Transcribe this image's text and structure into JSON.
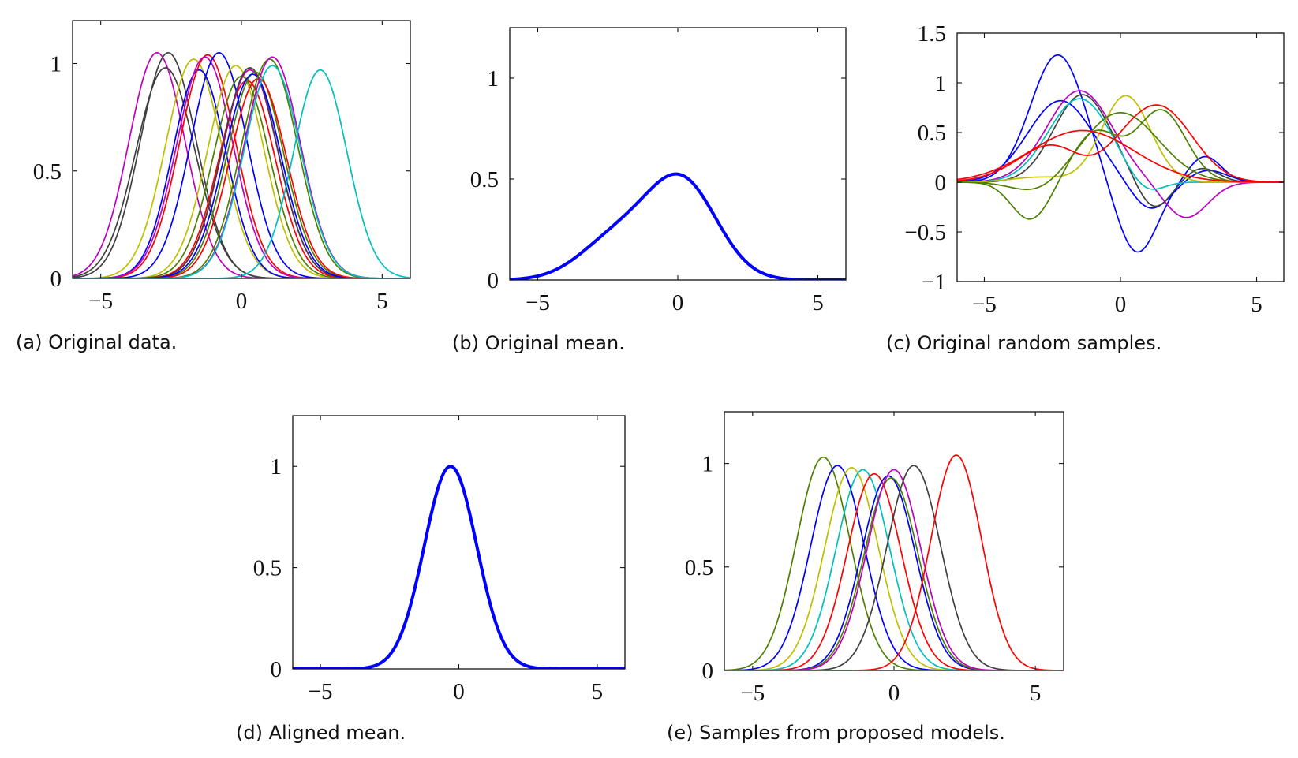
{
  "chart_data": [
    {
      "id": "a",
      "type": "line",
      "caption": "(a) Original data.",
      "xlim": [
        -6,
        6
      ],
      "ylim": [
        0,
        1.2
      ],
      "xticks": [
        -5,
        0,
        5
      ],
      "yticks": [
        0,
        0.5,
        1
      ],
      "xticklabels": [
        "−5",
        "0",
        "5"
      ],
      "yticklabels": [
        "0",
        "0.5",
        "1"
      ],
      "grid": false,
      "legend": "none",
      "series": [
        {
          "kind": "gaussian",
          "color": "#bf00bf",
          "center": -3.0,
          "amp": 1.05,
          "width": 1.0
        },
        {
          "kind": "gaussian",
          "color": "#404040",
          "center": -2.6,
          "amp": 1.05,
          "width": 1.0
        },
        {
          "kind": "gaussian",
          "color": "#404040",
          "center": -2.7,
          "amp": 0.98,
          "width": 1.05
        },
        {
          "kind": "gaussian",
          "color": "#bfbf00",
          "center": -1.7,
          "amp": 1.02,
          "width": 1.0
        },
        {
          "kind": "gaussian",
          "color": "#0000ff",
          "center": -1.5,
          "amp": 0.97,
          "width": 0.95
        },
        {
          "kind": "gaussian",
          "color": "#ff0000",
          "center": -1.2,
          "amp": 1.04,
          "width": 1.0
        },
        {
          "kind": "gaussian",
          "color": "#bf00bf",
          "center": -1.3,
          "amp": 1.03,
          "width": 1.0
        },
        {
          "kind": "gaussian",
          "color": "#0000ff",
          "center": -0.8,
          "amp": 1.05,
          "width": 1.0
        },
        {
          "kind": "gaussian",
          "color": "#bfbf00",
          "center": -0.2,
          "amp": 0.99,
          "width": 1.0
        },
        {
          "kind": "gaussian",
          "color": "#4d8000",
          "center": 0.0,
          "amp": 0.94,
          "width": 1.0
        },
        {
          "kind": "gaussian",
          "color": "#ff0000",
          "center": 0.2,
          "amp": 0.92,
          "width": 1.0
        },
        {
          "kind": "gaussian",
          "color": "#bf00bf",
          "center": 0.3,
          "amp": 0.97,
          "width": 1.0
        },
        {
          "kind": "gaussian",
          "color": "#404040",
          "center": 0.3,
          "amp": 0.98,
          "width": 1.0
        },
        {
          "kind": "gaussian",
          "color": "#4d8000",
          "center": 0.5,
          "amp": 0.96,
          "width": 1.0
        },
        {
          "kind": "gaussian",
          "color": "#0000ff",
          "center": 0.4,
          "amp": 0.95,
          "width": 1.0
        },
        {
          "kind": "gaussian",
          "color": "#ff0000",
          "center": 0.6,
          "amp": 0.93,
          "width": 1.0
        },
        {
          "kind": "gaussian",
          "color": "#4d8000",
          "center": 1.0,
          "amp": 1.02,
          "width": 1.0
        },
        {
          "kind": "gaussian",
          "color": "#bf00bf",
          "center": 1.1,
          "amp": 1.03,
          "width": 1.0
        },
        {
          "kind": "gaussian",
          "color": "#00bfbf",
          "center": 1.1,
          "amp": 0.99,
          "width": 1.0
        },
        {
          "kind": "gaussian",
          "color": "#00bfbf",
          "center": 2.8,
          "amp": 0.97,
          "width": 0.95
        }
      ]
    },
    {
      "id": "b",
      "type": "line",
      "caption": "(b) Original mean.",
      "xlim": [
        -6,
        6
      ],
      "ylim": [
        0,
        1.25
      ],
      "xticks": [
        -5,
        0,
        5
      ],
      "yticks": [
        0,
        0.5,
        1
      ],
      "xticklabels": [
        "−5",
        "0",
        "5"
      ],
      "yticklabels": [
        "0",
        "0.5",
        "1"
      ],
      "grid": false,
      "legend": "none",
      "series": [
        {
          "kind": "sum",
          "color": "#0000ff",
          "thick": true,
          "components": [
            {
              "center": 0.15,
              "amp": 0.48,
              "width": 1.25
            },
            {
              "center": -2.2,
              "amp": 0.2,
              "width": 1.3
            }
          ]
        }
      ]
    },
    {
      "id": "c",
      "type": "line",
      "caption": "(c) Original random samples.",
      "xlim": [
        -6,
        6
      ],
      "ylim": [
        -1,
        1.5
      ],
      "xticks": [
        -5,
        0,
        5
      ],
      "yticks": [
        -1,
        -0.5,
        0,
        0.5,
        1,
        1.5
      ],
      "xticklabels": [
        "−5",
        "0",
        "5"
      ],
      "yticklabels": [
        "−1",
        "−0.5",
        "0",
        "0.5",
        "1",
        "1.5"
      ],
      "grid": false,
      "legend": "none",
      "series": [
        {
          "kind": "sum",
          "color": "#0000ff",
          "components": [
            {
              "center": -2.3,
              "amp": 1.28,
              "width": 1.0
            },
            {
              "center": 0.6,
              "amp": -0.72,
              "width": 0.75
            },
            {
              "center": 3.1,
              "amp": 0.26,
              "width": 0.6
            }
          ]
        },
        {
          "kind": "sum",
          "color": "#0000ff",
          "components": [
            {
              "center": -2.2,
              "amp": 0.82,
              "width": 1.2
            },
            {
              "center": 1.1,
              "amp": -0.28,
              "width": 0.7
            },
            {
              "center": 3.2,
              "amp": 0.12,
              "width": 0.7
            }
          ]
        },
        {
          "kind": "sum",
          "color": "#bf00bf",
          "components": [
            {
              "center": -1.5,
              "amp": 0.92,
              "width": 1.2
            },
            {
              "center": 2.4,
              "amp": -0.36,
              "width": 0.8
            }
          ]
        },
        {
          "kind": "sum",
          "color": "#404040",
          "components": [
            {
              "center": -1.4,
              "amp": 0.88,
              "width": 1.05
            },
            {
              "center": 1.2,
              "amp": -0.28,
              "width": 0.6
            },
            {
              "center": 3.0,
              "amp": 0.14,
              "width": 0.6
            }
          ]
        },
        {
          "kind": "sum",
          "color": "#00bfbf",
          "components": [
            {
              "center": -1.5,
              "amp": 0.84,
              "width": 1.15
            },
            {
              "center": 0.9,
              "amp": -0.14,
              "width": 0.6
            }
          ]
        },
        {
          "kind": "sum",
          "color": "#bfbf00",
          "components": [
            {
              "center": 0.2,
              "amp": 0.87,
              "width": 0.9
            },
            {
              "center": -3.0,
              "amp": 0.05,
              "width": 1.0
            }
          ]
        },
        {
          "kind": "sum",
          "color": "#4d8000",
          "components": [
            {
              "center": -3.3,
              "amp": -0.38,
              "width": 0.7
            },
            {
              "center": -0.9,
              "amp": 0.5,
              "width": 0.85
            },
            {
              "center": 1.5,
              "amp": 0.72,
              "width": 0.9
            }
          ]
        },
        {
          "kind": "sum",
          "color": "#4d8000",
          "components": [
            {
              "center": -3.0,
              "amp": -0.12,
              "width": 0.9
            },
            {
              "center": 0.0,
              "amp": 0.7,
              "width": 1.4
            }
          ]
        },
        {
          "kind": "sum",
          "color": "#ff0000",
          "components": [
            {
              "center": -1.7,
              "amp": 0.54,
              "width": 1.6
            },
            {
              "center": 1.5,
              "amp": 0.7,
              "width": 1.2
            },
            {
              "center": -1.2,
              "amp": -0.3,
              "width": 0.9
            }
          ]
        },
        {
          "kind": "sum",
          "color": "#ff0000",
          "components": [
            {
              "center": -1.4,
              "amp": 0.52,
              "width": 1.9
            }
          ]
        }
      ]
    },
    {
      "id": "d",
      "type": "line",
      "caption": "(d) Aligned mean.",
      "xlim": [
        -6,
        6
      ],
      "ylim": [
        0,
        1.25
      ],
      "xticks": [
        -5,
        0,
        5
      ],
      "yticks": [
        0,
        0.5,
        1
      ],
      "xticklabels": [
        "−5",
        "0",
        "5"
      ],
      "yticklabels": [
        "0",
        "0.5",
        "1"
      ],
      "grid": false,
      "legend": "none",
      "series": [
        {
          "kind": "gaussian",
          "color": "#0000ff",
          "thick": true,
          "center": -0.3,
          "amp": 1.0,
          "width": 0.95
        }
      ]
    },
    {
      "id": "e",
      "type": "line",
      "caption": "(e) Samples from proposed models.",
      "xlim": [
        -6,
        6
      ],
      "ylim": [
        0,
        1.25
      ],
      "xticks": [
        -5,
        0,
        5
      ],
      "yticks": [
        0,
        0.5,
        1
      ],
      "xticklabels": [
        "−5",
        "0",
        "5"
      ],
      "yticklabels": [
        "0",
        "0.5",
        "1"
      ],
      "grid": false,
      "legend": "none",
      "series": [
        {
          "kind": "gaussian",
          "color": "#4d8000",
          "center": -2.5,
          "amp": 1.03,
          "width": 0.95
        },
        {
          "kind": "gaussian",
          "color": "#0000ff",
          "center": -2.0,
          "amp": 0.99,
          "width": 0.95
        },
        {
          "kind": "gaussian",
          "color": "#bfbf00",
          "center": -1.5,
          "amp": 0.98,
          "width": 0.95
        },
        {
          "kind": "gaussian",
          "color": "#00bfbf",
          "center": -1.1,
          "amp": 0.97,
          "width": 0.95
        },
        {
          "kind": "gaussian",
          "color": "#ff0000",
          "center": -0.7,
          "amp": 0.95,
          "width": 0.95
        },
        {
          "kind": "gaussian",
          "color": "#0000ff",
          "center": -0.2,
          "amp": 0.94,
          "width": 0.95
        },
        {
          "kind": "gaussian",
          "color": "#4d8000",
          "center": -0.1,
          "amp": 0.93,
          "width": 0.95
        },
        {
          "kind": "gaussian",
          "color": "#bf00bf",
          "center": 0.0,
          "amp": 0.97,
          "width": 0.95
        },
        {
          "kind": "gaussian",
          "color": "#404040",
          "center": 0.7,
          "amp": 0.99,
          "width": 0.95
        },
        {
          "kind": "gaussian",
          "color": "#ff0000",
          "center": 2.2,
          "amp": 1.04,
          "width": 0.9
        }
      ]
    }
  ]
}
